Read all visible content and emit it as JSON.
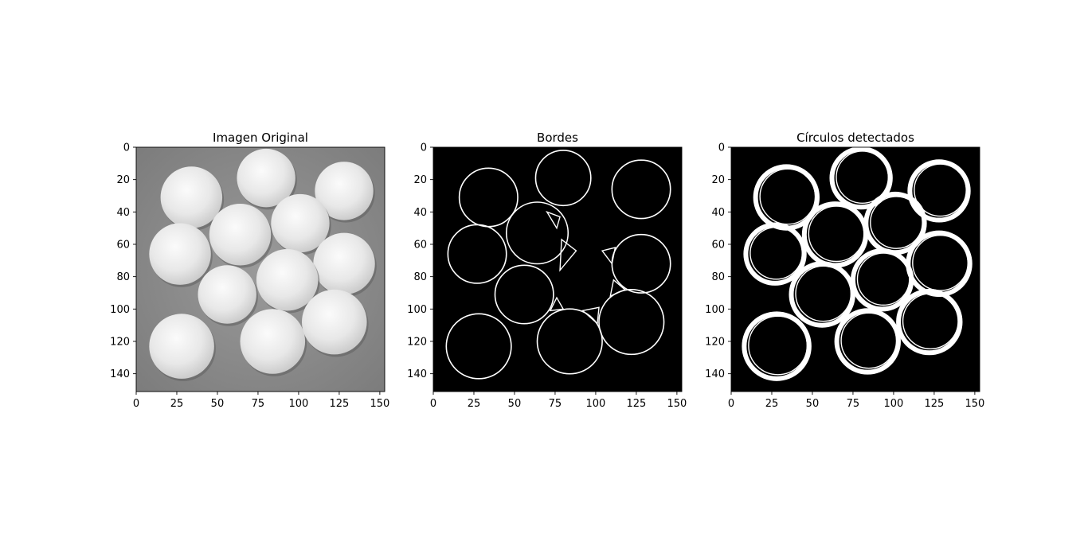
{
  "chart_data": [
    {
      "type": "image",
      "title": "Imagen Original",
      "xlim": [
        0,
        153
      ],
      "ylim": [
        151,
        0
      ],
      "xticks": [
        0,
        25,
        50,
        75,
        100,
        125,
        150
      ],
      "yticks": [
        0,
        20,
        40,
        60,
        80,
        100,
        120,
        140
      ],
      "background": "#8c8c8c",
      "circles": [
        {
          "cx": 34,
          "cy": 31,
          "r": 19
        },
        {
          "cx": 80,
          "cy": 19,
          "r": 18
        },
        {
          "cx": 128,
          "cy": 27,
          "r": 18
        },
        {
          "cx": 64,
          "cy": 54,
          "r": 19
        },
        {
          "cx": 101,
          "cy": 47,
          "r": 18
        },
        {
          "cx": 27,
          "cy": 66,
          "r": 19
        },
        {
          "cx": 128,
          "cy": 72,
          "r": 19
        },
        {
          "cx": 56,
          "cy": 91,
          "r": 18
        },
        {
          "cx": 93,
          "cy": 82,
          "r": 19
        },
        {
          "cx": 28,
          "cy": 123,
          "r": 20
        },
        {
          "cx": 84,
          "cy": 120,
          "r": 20
        },
        {
          "cx": 122,
          "cy": 108,
          "r": 20
        }
      ]
    },
    {
      "type": "image",
      "title": "Bordes",
      "xlim": [
        0,
        153
      ],
      "ylim": [
        151,
        0
      ],
      "xticks": [
        0,
        25,
        50,
        75,
        100,
        125,
        150
      ],
      "yticks": [
        0,
        20,
        40,
        60,
        80,
        100,
        120,
        140
      ],
      "background": "#000000",
      "circles": [
        {
          "cx": 34,
          "cy": 31,
          "r": 18
        },
        {
          "cx": 80,
          "cy": 19,
          "r": 17
        },
        {
          "cx": 128,
          "cy": 26,
          "r": 18
        },
        {
          "cx": 64,
          "cy": 53,
          "r": 19
        },
        {
          "cx": 27,
          "cy": 66,
          "r": 18
        },
        {
          "cx": 128,
          "cy": 72,
          "r": 18
        },
        {
          "cx": 56,
          "cy": 91,
          "r": 18
        },
        {
          "cx": 28,
          "cy": 123,
          "r": 20
        },
        {
          "cx": 84,
          "cy": 120,
          "r": 20
        },
        {
          "cx": 122,
          "cy": 108,
          "r": 20
        }
      ],
      "triangles": [
        [
          [
            70,
            40
          ],
          [
            78,
            43
          ],
          [
            76,
            50
          ]
        ],
        [
          [
            79,
            57
          ],
          [
            88,
            64
          ],
          [
            78,
            76
          ]
        ],
        [
          [
            104,
            64
          ],
          [
            112,
            62
          ],
          [
            110,
            72
          ]
        ],
        [
          [
            111,
            82
          ],
          [
            118,
            88
          ],
          [
            109,
            92
          ]
        ],
        [
          [
            76,
            93
          ],
          [
            80,
            100
          ],
          [
            72,
            101
          ]
        ],
        [
          [
            92,
            101
          ],
          [
            102,
            99
          ],
          [
            101,
            109
          ]
        ]
      ]
    },
    {
      "type": "image",
      "title": "Círculos detectados",
      "xlim": [
        0,
        153
      ],
      "ylim": [
        151,
        0
      ],
      "xticks": [
        0,
        25,
        50,
        75,
        100,
        125,
        150
      ],
      "yticks": [
        0,
        20,
        40,
        60,
        80,
        100,
        120,
        140
      ],
      "background": "#000000",
      "circles": [
        {
          "cx": 34,
          "cy": 31,
          "r": 18
        },
        {
          "cx": 80,
          "cy": 19,
          "r": 17
        },
        {
          "cx": 128,
          "cy": 27,
          "r": 17
        },
        {
          "cx": 64,
          "cy": 54,
          "r": 18
        },
        {
          "cx": 101,
          "cy": 47,
          "r": 17
        },
        {
          "cx": 27,
          "cy": 66,
          "r": 17
        },
        {
          "cx": 128,
          "cy": 72,
          "r": 18
        },
        {
          "cx": 56,
          "cy": 91,
          "r": 18
        },
        {
          "cx": 93,
          "cy": 82,
          "r": 17
        },
        {
          "cx": 28,
          "cy": 123,
          "r": 19
        },
        {
          "cx": 84,
          "cy": 120,
          "r": 18
        },
        {
          "cx": 122,
          "cy": 108,
          "r": 18
        }
      ]
    }
  ]
}
